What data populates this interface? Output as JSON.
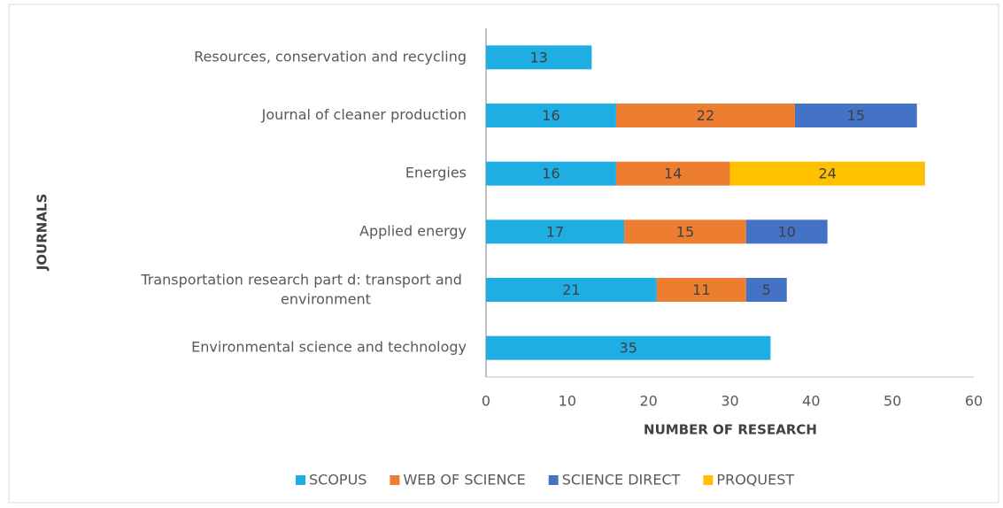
{
  "chart_data": {
    "type": "stacked_barh",
    "categories": [
      "Resources, conservation and recycling",
      "Journal of cleaner production",
      "Energies",
      "Applied energy",
      "Transportation research part d: transport and environment",
      "Environmental science and technology"
    ],
    "series": [
      {
        "name": "SCOPUS",
        "color": "#1eaee4",
        "values": [
          13,
          16,
          16,
          17,
          21,
          35
        ]
      },
      {
        "name": "WEB OF SCIENCE",
        "color": "#ed7d31",
        "values": [
          null,
          22,
          14,
          15,
          11,
          null
        ]
      },
      {
        "name": "SCIENCE DIRECT",
        "color": "#4472c4",
        "values": [
          null,
          15,
          null,
          10,
          5,
          null
        ]
      },
      {
        "name": "PROQUEST",
        "color": "#ffc000",
        "values": [
          null,
          null,
          24,
          null,
          null,
          null
        ]
      }
    ],
    "xlim": [
      0,
      60
    ],
    "xticks": [
      0,
      10,
      20,
      30,
      40,
      50,
      60
    ],
    "x_label": "NUMBER OF RESEARCH",
    "y_label": "JOURNALS",
    "legend": "bottom"
  }
}
